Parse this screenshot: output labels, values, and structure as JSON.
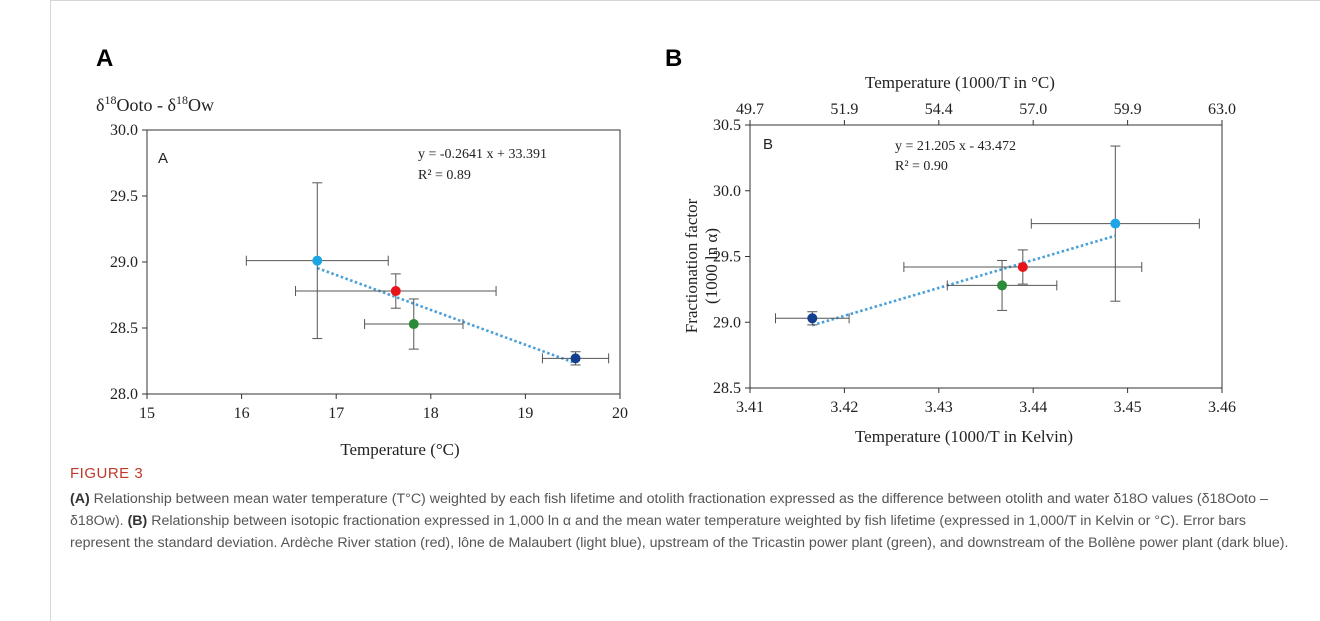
{
  "caption": {
    "figure_label": "FIGURE 3",
    "part_a_tag": "(A)",
    "part_a_text": " Relationship between mean water temperature (T°C) weighted by each fish lifetime and otolith fractionation expressed as the difference between otolith and water δ18O values (δ18Ooto – δ18Ow). ",
    "part_b_tag": "(B)",
    "part_b_text": " Relationship between isotopic fractionation expressed in 1,000 ln α and the mean water temperature weighted by fish lifetime (expressed in 1,000/T in Kelvin or °C). Error bars represent the standard deviation. Ardèche River station (red), lône de Malaubert (light blue), upstream of the Tricastin power plant (green), and downstream of the Bollène power plant (dark blue)."
  },
  "colors": {
    "red": "#e8141a",
    "light_blue": "#1ea6e4",
    "green": "#2b8b3a",
    "dark_blue": "#133f8f",
    "trend": "#4a9fd8"
  },
  "chart_data": [
    {
      "type": "scatter",
      "panel_letter": "A",
      "inner_letter": "A",
      "ylabel": "δ18Ooto - δ18Ow",
      "xlabel": "Temperature (°C)",
      "xlim": [
        15,
        20
      ],
      "ylim": [
        28.0,
        30.0
      ],
      "xticks": [
        "15",
        "16",
        "17",
        "18",
        "19",
        "20"
      ],
      "yticks": [
        "28.0",
        "28.5",
        "29.0",
        "29.5",
        "30.0"
      ],
      "equation": "y = -0.2641 x + 33.391",
      "r2": "R² = 0.89",
      "trendline": {
        "slope": -0.2641,
        "intercept": 33.391,
        "x_range": [
          16.8,
          19.5
        ]
      },
      "points": [
        {
          "station": "lône de Malaubert",
          "color": "light_blue",
          "x": 16.8,
          "y": 29.01,
          "xerr": 0.75,
          "yerr": 0.59
        },
        {
          "station": "Ardèche River station",
          "color": "red",
          "x": 17.63,
          "y": 28.78,
          "xerr": 1.06,
          "yerr": 0.13
        },
        {
          "station": "upstream of the Tricastin power plant",
          "color": "green",
          "x": 17.82,
          "y": 28.53,
          "xerr": 0.52,
          "yerr": 0.19
        },
        {
          "station": "downstream of the Bollène power plant",
          "color": "dark_blue",
          "x": 19.53,
          "y": 28.27,
          "xerr": 0.35,
          "yerr": 0.05
        }
      ]
    },
    {
      "type": "scatter",
      "panel_letter": "B",
      "inner_letter": "B",
      "ylabel_line1": "Fractionation factor",
      "ylabel_line2": "(1000 ln α)",
      "xlabel": "Temperature (1000/T in Kelvin)",
      "top_xlabel": "Temperature (1000/T in °C)",
      "xlim": [
        3.41,
        3.46
      ],
      "ylim": [
        28.5,
        30.5
      ],
      "xticks": [
        "3.41",
        "3.42",
        "3.43",
        "3.44",
        "3.45",
        "3.46"
      ],
      "yticks": [
        "28.5",
        "29.0",
        "29.5",
        "30.0",
        "30.5"
      ],
      "top_xticks": [
        "49.7",
        "51.9",
        "54.4",
        "57.0",
        "59.9",
        "63.0"
      ],
      "equation": "y = 21.205 x - 43.472",
      "r2": "R² = 0.90",
      "trendline": {
        "slope": 21.205,
        "intercept": -43.472,
        "x_range": [
          3.4166,
          3.4487
        ]
      },
      "points": [
        {
          "station": "downstream of the Bollène power plant",
          "color": "dark_blue",
          "x": 3.4166,
          "y": 29.03,
          "xerr": 0.0039,
          "yerr": 0.05
        },
        {
          "station": "upstream of the Tricastin power plant",
          "color": "green",
          "x": 3.4367,
          "y": 29.28,
          "xerr": 0.0058,
          "yerr": 0.19
        },
        {
          "station": "Ardèche River station",
          "color": "red",
          "x": 3.4389,
          "y": 29.42,
          "xerr": 0.0126,
          "yerr": 0.13
        },
        {
          "station": "lône de Malaubert",
          "color": "light_blue",
          "x": 3.4487,
          "y": 29.75,
          "xerr": 0.0089,
          "yerr": 0.59
        }
      ]
    }
  ]
}
